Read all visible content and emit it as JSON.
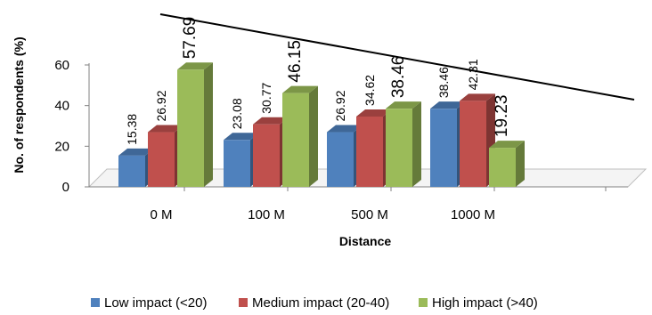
{
  "chart_data": {
    "type": "bar",
    "title": "",
    "xlabel": "Distance",
    "ylabel": "No. of respondents (%)",
    "categories": [
      "0 M",
      "100 M",
      "500 M",
      "1000 M"
    ],
    "ylim": [
      0,
      60
    ],
    "yticks": [
      0,
      20,
      40,
      60
    ],
    "series": [
      {
        "name": "Low impact (<20)",
        "color": "#4F81BD",
        "values": [
          15.38,
          23.08,
          26.92,
          38.46
        ],
        "labels": [
          "15.38",
          "23.08",
          "26.92",
          "38.46"
        ]
      },
      {
        "name": "Medium impact (20-40)",
        "color": "#C0504D",
        "values": [
          26.92,
          30.77,
          34.62,
          42.31
        ],
        "labels": [
          "26.92",
          "30.77",
          "34.62",
          "42.31"
        ]
      },
      {
        "name": "High impact (>40)",
        "color": "#9BBB59",
        "values": [
          57.69,
          46.15,
          38.46,
          19.23
        ],
        "labels": [
          "57.69",
          "46.15",
          "38.46",
          "19.23"
        ]
      }
    ],
    "legend_position": "bottom",
    "grid": false,
    "style": "3d-clustered-column"
  }
}
